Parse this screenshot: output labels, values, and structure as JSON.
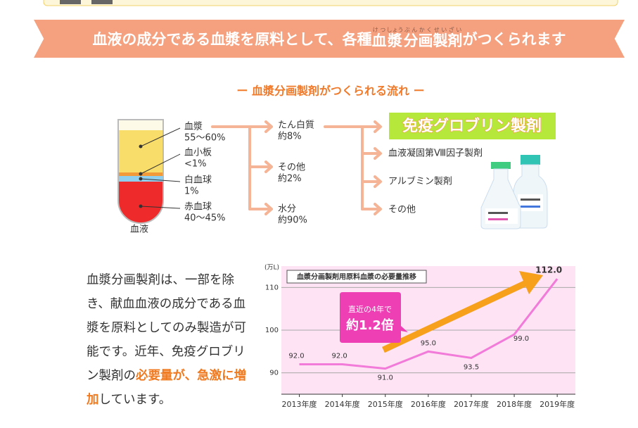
{
  "banner": {
    "before": "血液の成分である血漿を原料として、各種",
    "ruby": [
      {
        "base": "血",
        "text": "けつ"
      },
      {
        "base": "漿",
        "text": "しょう"
      },
      {
        "base": "分",
        "text": "ぶん"
      },
      {
        "base": "画",
        "text": "かく"
      },
      {
        "base": "製",
        "text": "せい"
      },
      {
        "base": "剤",
        "text": "ざい"
      }
    ],
    "after": "がつくられます"
  },
  "flow": {
    "title": "ー 血漿分画製剤がつくられる流れ ー",
    "blood": {
      "label": "血液",
      "components": [
        {
          "name": "血漿",
          "amount": "55〜60%"
        },
        {
          "name": "血小板",
          "amount": "<1%"
        },
        {
          "name": "白血球",
          "amount": "1%"
        },
        {
          "name": "赤血球",
          "amount": "40〜45%"
        }
      ]
    },
    "plasma": [
      {
        "name": "たん白質",
        "amount": "約8%"
      },
      {
        "name": "その他",
        "amount": "約2%"
      },
      {
        "name": "水分",
        "amount": "約90%"
      }
    ],
    "products": [
      "免疫グロブリン製剤",
      "血液凝固第Ⅷ因子製剤",
      "アルブミン製剤",
      "その他"
    ]
  },
  "body": {
    "parts": [
      "血漿分画製剤は、一部を除き、献血血液の成分である血漿を原料としてのみ製造が可能です。近年、免疫グロブリン製剤の",
      "必要量が、急激に増加",
      "しています。"
    ]
  },
  "chart_data": {
    "type": "line",
    "title": "血漿分画製剤用原料血漿の必要量推移",
    "ylabel": "(万L)",
    "annotation": [
      "直近の4年で",
      "約1.2倍"
    ],
    "categories": [
      "2013年度",
      "2014年度",
      "2015年度",
      "2016年度",
      "2017年度",
      "2018年度",
      "2019年度"
    ],
    "series": [
      {
        "color": "#f27ad8",
        "values": [
          92.0,
          92.0,
          91.0,
          95.0,
          93.5,
          99.0,
          112.0
        ],
        "value_labels": [
          "92.0",
          "92.0",
          "91.0",
          "95.0",
          "93.5",
          "99.0",
          "112.0"
        ]
      }
    ],
    "ylim": [
      85,
      115
    ],
    "yticks": [
      90,
      100,
      110
    ],
    "grid": true
  }
}
